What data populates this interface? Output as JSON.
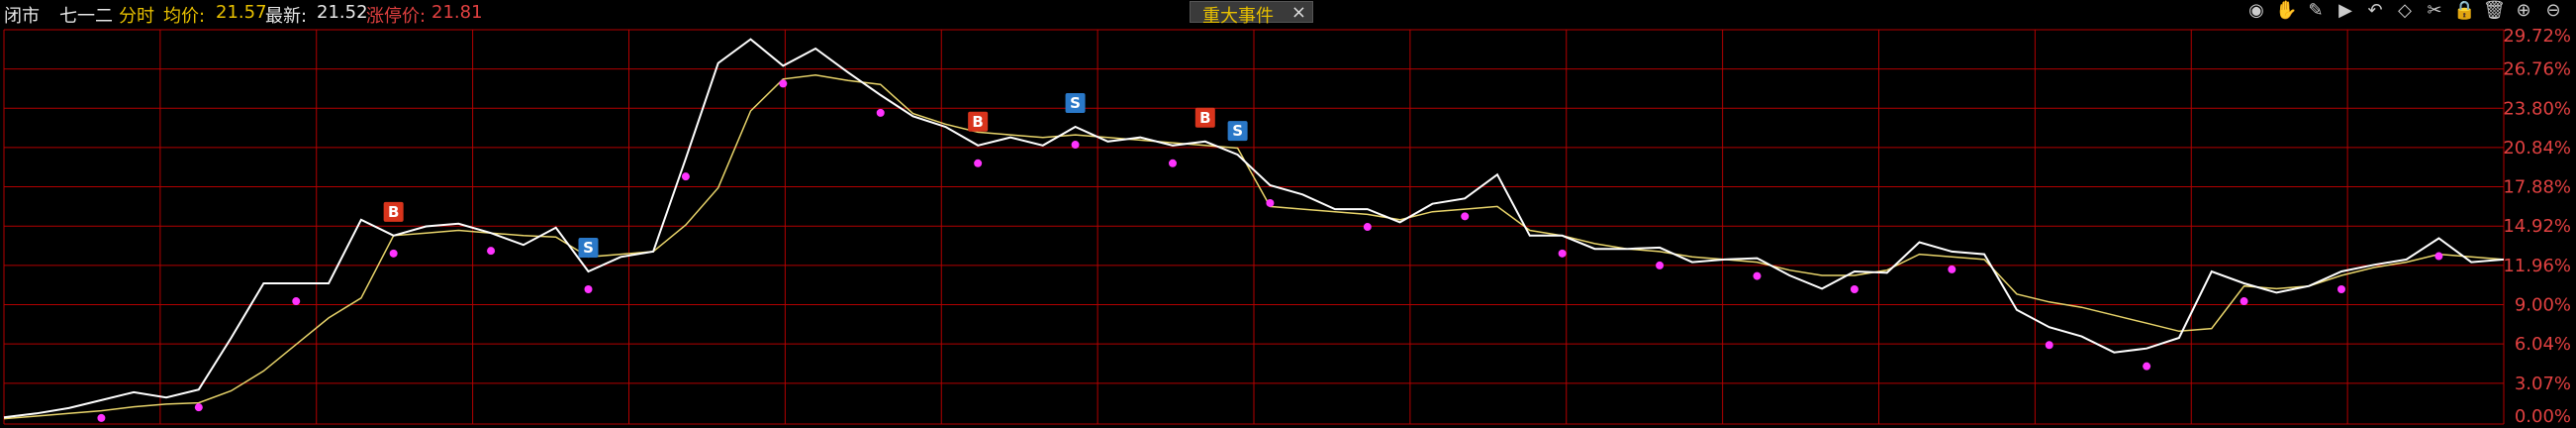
{
  "header": {
    "prefix": "闭市",
    "stock_name": "七一二",
    "mode": "分时",
    "avg_label": "均价:",
    "avg_value": "21.57",
    "latest_label": "最新:",
    "latest_value": "21.52",
    "limit_label": "涨停价:",
    "limit_value": "21.81"
  },
  "events_tab": {
    "label": "重大事件",
    "close": "×"
  },
  "toolbar": {
    "icons": [
      "eye-icon",
      "hand-icon",
      "marker-icon",
      "play-icon",
      "undo-icon",
      "diamond-icon",
      "scissors-icon",
      "lock-icon",
      "delete-icon",
      "zoom-in-icon",
      "zoom-out-icon"
    ],
    "glyphs": [
      "◉",
      "✋",
      "✎",
      "▶",
      "↶",
      "◇",
      "✂",
      "🔒",
      "🗑",
      "⊕",
      "⊖"
    ]
  },
  "chart_data": {
    "type": "line",
    "ylim": [
      0,
      29.72
    ],
    "yticks": [
      "29.72%",
      "26.76%",
      "23.80%",
      "20.84%",
      "17.88%",
      "14.92%",
      "11.96%",
      "9.00%",
      "6.04%",
      "3.07%",
      "0.00%"
    ],
    "ytick_values": [
      29.72,
      26.76,
      23.8,
      20.84,
      17.88,
      14.92,
      11.96,
      9.0,
      6.04,
      3.07,
      0.0
    ],
    "series": [
      {
        "values": [
          0.5,
          0.8,
          1.2,
          1.8,
          2.4,
          2.0,
          2.6,
          6.5,
          10.6,
          10.6,
          10.6,
          15.4,
          14.2,
          14.9,
          15.1,
          14.4,
          13.5,
          14.8,
          11.5,
          12.6,
          13.0,
          20.0,
          27.2,
          29.0,
          27.0,
          28.3,
          26.5,
          24.8,
          23.2,
          22.4,
          21.0,
          21.6,
          21.0,
          22.4,
          21.3,
          21.6,
          21.0,
          21.3,
          20.3,
          18.0,
          17.3,
          16.2,
          16.2,
          15.2,
          16.6,
          17.0,
          18.8,
          14.2,
          14.2,
          13.2,
          13.2,
          13.3,
          12.2,
          12.4,
          12.5,
          11.2,
          10.2,
          11.5,
          11.4,
          13.7,
          13.0,
          12.8,
          8.6,
          7.3,
          6.6,
          5.4,
          5.7,
          6.5,
          11.5,
          10.6,
          9.9,
          10.4,
          11.5,
          12.0,
          12.4,
          14.0,
          12.2,
          12.4
        ]
      },
      {
        "values": [
          0.4,
          0.6,
          0.8,
          1.0,
          1.3,
          1.5,
          1.6,
          2.5,
          4.0,
          6.0,
          8.0,
          9.5,
          14.2,
          14.4,
          14.6,
          14.4,
          14.2,
          14.1,
          12.6,
          12.8,
          13.0,
          15.0,
          17.8,
          23.6,
          26.0,
          26.3,
          25.9,
          25.6,
          23.4,
          22.6,
          22.0,
          21.8,
          21.6,
          21.8,
          21.6,
          21.4,
          21.2,
          21.0,
          20.8,
          16.4,
          16.2,
          16.0,
          15.8,
          15.4,
          16.0,
          16.2,
          16.4,
          14.6,
          14.2,
          13.6,
          13.2,
          13.0,
          12.6,
          12.4,
          12.2,
          11.6,
          11.2,
          11.2,
          11.6,
          12.8,
          12.6,
          12.4,
          9.8,
          9.2,
          8.8,
          8.2,
          7.6,
          7.0,
          7.2,
          10.4,
          10.2,
          10.4,
          11.2,
          11.8,
          12.2,
          12.8,
          12.6,
          12.4
        ]
      }
    ],
    "trade_markers": [
      {
        "label": "B",
        "index": 12
      },
      {
        "label": "S",
        "index": 18
      },
      {
        "label": "B",
        "index": 30
      },
      {
        "label": "S",
        "index": 33
      },
      {
        "label": "B",
        "index": 37
      },
      {
        "label": "S",
        "index": 38
      }
    ],
    "colors": {
      "price": "#ffffff",
      "avg": "#e8d46a",
      "grid": "#b30000",
      "marker_buy": "#d8341c",
      "marker_sell": "#2a78c8",
      "signal": "#ff33ff",
      "axis_text": "#e04040"
    }
  }
}
